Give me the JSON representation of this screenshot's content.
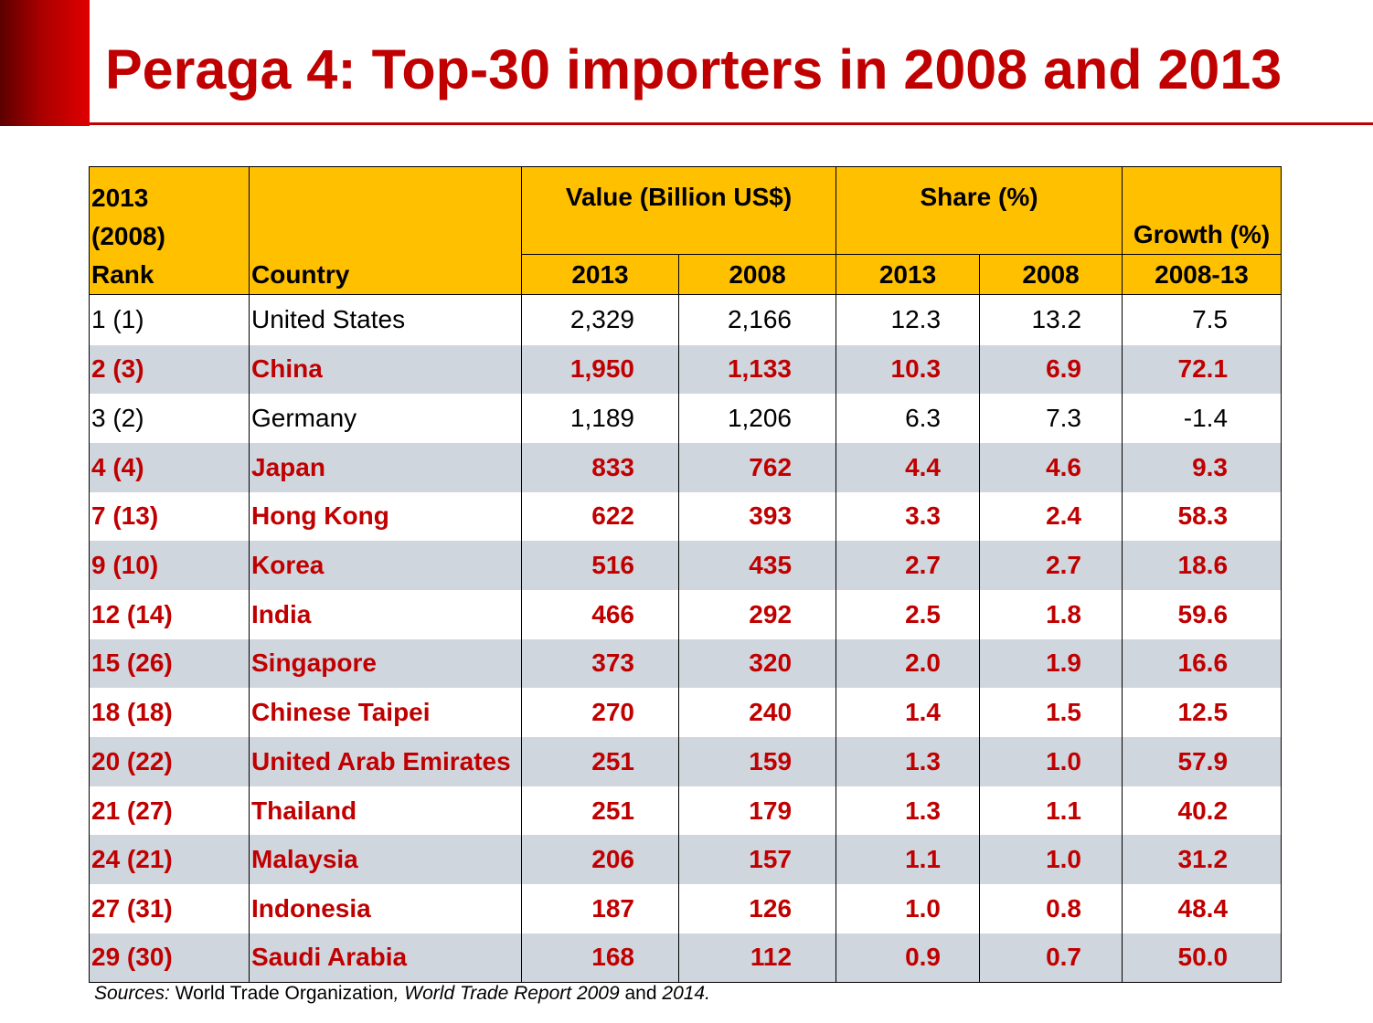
{
  "title": "Peraga 4: Top-30 importers in 2008 and 2013",
  "header": {
    "rank_line1": "2013",
    "rank_line2": "(2008)",
    "rank_line3": "Rank",
    "country": "Country",
    "value_group": "Value (Billion US$)",
    "share_group": "Share (%)",
    "growth": "Growth (%)",
    "years": {
      "v2013": "2013",
      "v2008": "2008",
      "s2013": "2013",
      "s2008": "2008",
      "growth_period": "2008-13"
    }
  },
  "rows": [
    {
      "rank": "1 (1)",
      "country": "United States",
      "v2013": "2,329",
      "v2008": "2,166",
      "s2013": "12.3",
      "s2008": "13.2",
      "growth": "7.5"
    },
    {
      "rank": "2 (3)",
      "country": "China",
      "v2013": "1,950",
      "v2008": "1,133",
      "s2013": "10.3",
      "s2008": "6.9",
      "growth": "72.1"
    },
    {
      "rank": "3 (2)",
      "country": "Germany",
      "v2013": "1,189",
      "v2008": "1,206",
      "s2013": "6.3",
      "s2008": "7.3",
      "growth": "-1.4"
    },
    {
      "rank": "4 (4)",
      "country": "Japan",
      "v2013": "833",
      "v2008": "762",
      "s2013": "4.4",
      "s2008": "4.6",
      "growth": "9.3"
    },
    {
      "rank": "7 (13)",
      "country": "Hong Kong",
      "v2013": "622",
      "v2008": "393",
      "s2013": "3.3",
      "s2008": "2.4",
      "growth": "58.3"
    },
    {
      "rank": "9 (10)",
      "country": "Korea",
      "v2013": "516",
      "v2008": "435",
      "s2013": "2.7",
      "s2008": "2.7",
      "growth": "18.6"
    },
    {
      "rank": "12 (14)",
      "country": "India",
      "v2013": "466",
      "v2008": "292",
      "s2013": "2.5",
      "s2008": "1.8",
      "growth": "59.6"
    },
    {
      "rank": "15 (26)",
      "country": "Singapore",
      "v2013": "373",
      "v2008": "320",
      "s2013": "2.0",
      "s2008": "1.9",
      "growth": "16.6"
    },
    {
      "rank": "18 (18)",
      "country": "Chinese Taipei",
      "v2013": "270",
      "v2008": "240",
      "s2013": "1.4",
      "s2008": "1.5",
      "growth": "12.5"
    },
    {
      "rank": "20 (22)",
      "country": "United Arab Emirates",
      "v2013": "251",
      "v2008": "159",
      "s2013": "1.3",
      "s2008": "1.0",
      "growth": "57.9"
    },
    {
      "rank": "21 (27)",
      "country": "Thailand",
      "v2013": "251",
      "v2008": "179",
      "s2013": "1.3",
      "s2008": "1.1",
      "growth": "40.2"
    },
    {
      "rank": "24 (21)",
      "country": "Malaysia",
      "v2013": "206",
      "v2008": "157",
      "s2013": "1.1",
      "s2008": "1.0",
      "growth": "31.2"
    },
    {
      "rank": "27 (31)",
      "country": "Indonesia",
      "v2013": "187",
      "v2008": "126",
      "s2013": "1.0",
      "s2008": "0.8",
      "growth": "48.4"
    },
    {
      "rank": "29 (30)",
      "country": "Saudi Arabia",
      "v2013": "168",
      "v2008": "112",
      "s2013": "0.9",
      "s2008": "0.7",
      "growth": "50.0"
    }
  ],
  "source": {
    "label": "Sources:",
    "org": " World Trade Organization",
    "sep": ", ",
    "report": "World Trade Report 2009",
    "and": " and ",
    "year": "2014."
  },
  "colors": {
    "accent": "#c00000",
    "header_fill": "#ffc000",
    "row_shade": "#d0d6de"
  }
}
